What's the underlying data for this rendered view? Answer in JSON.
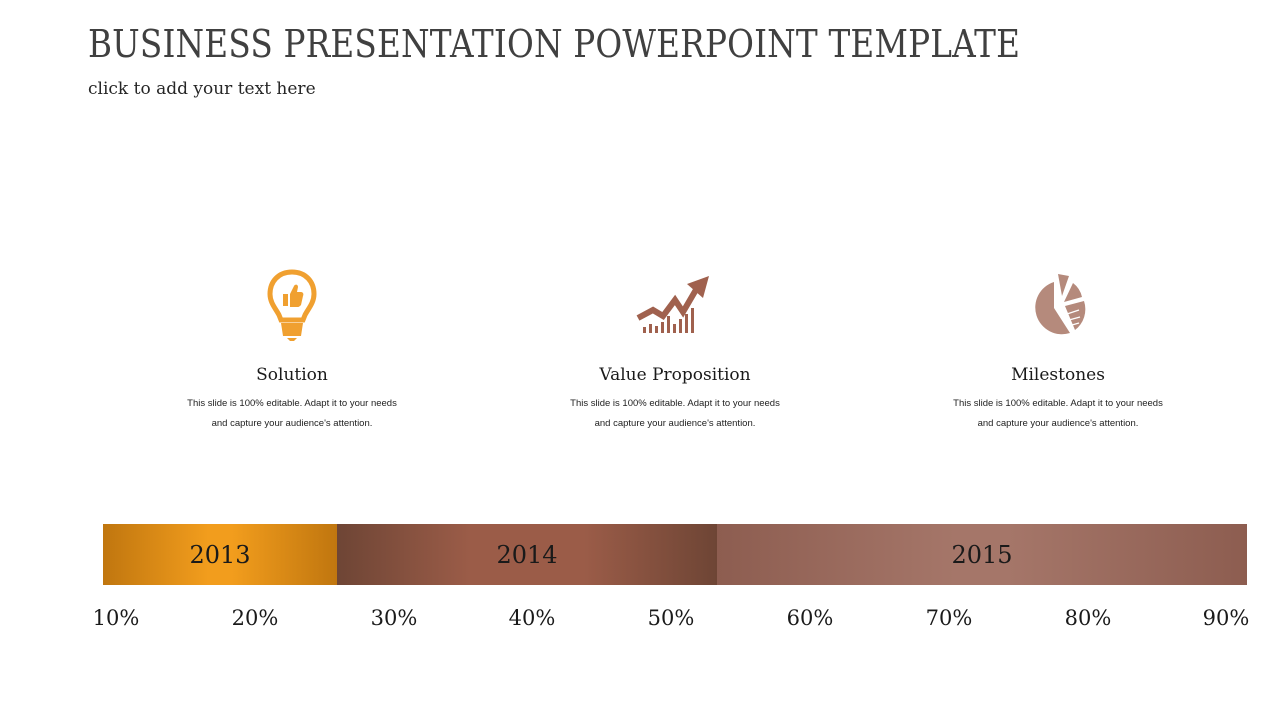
{
  "header": {
    "title": "BUSINESS PRESENTATION POWERPOINT TEMPLATE",
    "subtitle": "click to add your text here"
  },
  "cards": [
    {
      "icon": "lightbulb-thumbs-up-icon",
      "color": "#f0a030",
      "heading": "Solution",
      "desc_line1": "This slide is 100% editable. Adapt it to your needs",
      "desc_line2": "and capture your audience's attention."
    },
    {
      "icon": "growth-chart-arrow-icon",
      "color": "#a0614e",
      "heading": "Value Proposition",
      "desc_line1": "This slide is 100% editable. Adapt it to your needs",
      "desc_line2": "and capture your audience's attention."
    },
    {
      "icon": "pie-chart-icon",
      "color": "#b58a7c",
      "heading": "Milestones",
      "desc_line1": "This slide is 100% editable. Adapt it to your needs",
      "desc_line2": "and capture your audience's attention."
    }
  ],
  "timeline": {
    "segments": [
      {
        "label": "2013",
        "color": "#f29d1d"
      },
      {
        "label": "2014",
        "color": "#9b5c48"
      },
      {
        "label": "2015",
        "color": "#a57669"
      }
    ],
    "scale": [
      "10%",
      "20%",
      "30%",
      "40%",
      "50%",
      "60%",
      "70%",
      "80%",
      "90%"
    ]
  }
}
